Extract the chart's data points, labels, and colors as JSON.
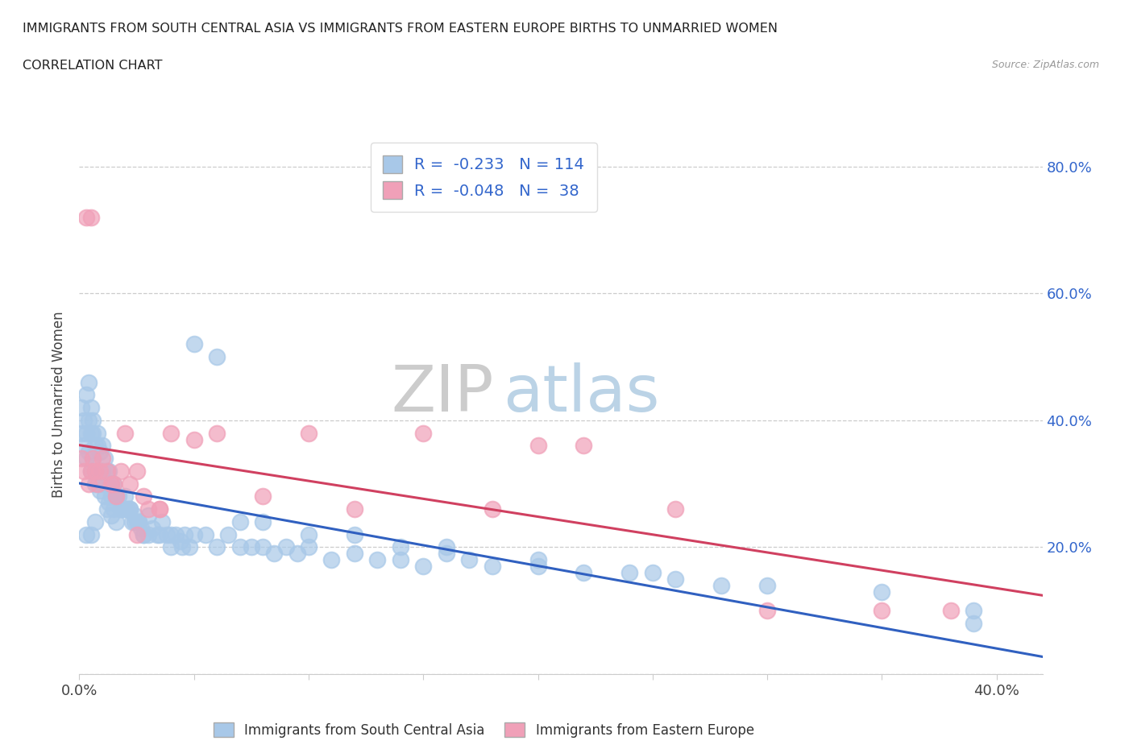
{
  "title_line1": "IMMIGRANTS FROM SOUTH CENTRAL ASIA VS IMMIGRANTS FROM EASTERN EUROPE BIRTHS TO UNMARRIED WOMEN",
  "title_line2": "CORRELATION CHART",
  "source_text": "Source: ZipAtlas.com",
  "ylabel": "Births to Unmarried Women",
  "xlim": [
    0.0,
    0.42
  ],
  "ylim": [
    0.0,
    0.85
  ],
  "color_blue": "#a8c8e8",
  "color_pink": "#f0a0b8",
  "line_color_blue": "#3060c0",
  "line_color_pink": "#d04060",
  "R_blue": -0.233,
  "N_blue": 114,
  "R_pink": -0.048,
  "N_pink": 38,
  "legend_label_blue": "Immigrants from South Central Asia",
  "legend_label_pink": "Immigrants from Eastern Europe",
  "watermark_zip": "ZIP",
  "watermark_atlas": "atlas",
  "blue_scatter_x": [
    0.001,
    0.001,
    0.002,
    0.002,
    0.003,
    0.003,
    0.003,
    0.004,
    0.004,
    0.005,
    0.005,
    0.005,
    0.006,
    0.006,
    0.007,
    0.007,
    0.008,
    0.008,
    0.009,
    0.009,
    0.01,
    0.01,
    0.011,
    0.011,
    0.012,
    0.012,
    0.013,
    0.013,
    0.014,
    0.014,
    0.015,
    0.015,
    0.016,
    0.016,
    0.017,
    0.018,
    0.019,
    0.02,
    0.021,
    0.022,
    0.023,
    0.024,
    0.025,
    0.026,
    0.027,
    0.028,
    0.03,
    0.032,
    0.034,
    0.036,
    0.038,
    0.04,
    0.042,
    0.044,
    0.046,
    0.048,
    0.05,
    0.055,
    0.06,
    0.065,
    0.07,
    0.075,
    0.08,
    0.085,
    0.09,
    0.095,
    0.1,
    0.11,
    0.12,
    0.13,
    0.14,
    0.15,
    0.16,
    0.17,
    0.18,
    0.2,
    0.22,
    0.24,
    0.26,
    0.28,
    0.004,
    0.006,
    0.008,
    0.01,
    0.012,
    0.014,
    0.016,
    0.018,
    0.02,
    0.022,
    0.024,
    0.026,
    0.028,
    0.03,
    0.035,
    0.04,
    0.045,
    0.05,
    0.06,
    0.07,
    0.08,
    0.1,
    0.12,
    0.14,
    0.16,
    0.2,
    0.25,
    0.3,
    0.35,
    0.39,
    0.003,
    0.005,
    0.007,
    0.39
  ],
  "blue_scatter_y": [
    0.42,
    0.38,
    0.4,
    0.36,
    0.44,
    0.38,
    0.34,
    0.4,
    0.35,
    0.42,
    0.38,
    0.32,
    0.38,
    0.34,
    0.36,
    0.3,
    0.38,
    0.32,
    0.35,
    0.29,
    0.36,
    0.3,
    0.34,
    0.28,
    0.32,
    0.26,
    0.32,
    0.27,
    0.3,
    0.25,
    0.3,
    0.26,
    0.28,
    0.24,
    0.28,
    0.26,
    0.26,
    0.28,
    0.26,
    0.26,
    0.24,
    0.25,
    0.24,
    0.24,
    0.23,
    0.22,
    0.25,
    0.23,
    0.22,
    0.24,
    0.22,
    0.2,
    0.22,
    0.21,
    0.22,
    0.2,
    0.22,
    0.22,
    0.2,
    0.22,
    0.2,
    0.2,
    0.2,
    0.19,
    0.2,
    0.19,
    0.2,
    0.18,
    0.19,
    0.18,
    0.18,
    0.17,
    0.19,
    0.18,
    0.17,
    0.17,
    0.16,
    0.16,
    0.15,
    0.14,
    0.46,
    0.4,
    0.36,
    0.32,
    0.3,
    0.28,
    0.28,
    0.26,
    0.26,
    0.26,
    0.24,
    0.24,
    0.22,
    0.22,
    0.22,
    0.22,
    0.2,
    0.52,
    0.5,
    0.24,
    0.24,
    0.22,
    0.22,
    0.2,
    0.2,
    0.18,
    0.16,
    0.14,
    0.13,
    0.1,
    0.22,
    0.22,
    0.24,
    0.08
  ],
  "pink_scatter_x": [
    0.001,
    0.002,
    0.003,
    0.004,
    0.005,
    0.006,
    0.007,
    0.008,
    0.009,
    0.01,
    0.012,
    0.014,
    0.016,
    0.018,
    0.02,
    0.022,
    0.025,
    0.028,
    0.03,
    0.035,
    0.04,
    0.05,
    0.06,
    0.08,
    0.1,
    0.12,
    0.15,
    0.18,
    0.22,
    0.26,
    0.3,
    0.35,
    0.38,
    0.005,
    0.015,
    0.025,
    0.035,
    0.2
  ],
  "pink_scatter_y": [
    0.34,
    0.32,
    0.72,
    0.3,
    0.32,
    0.34,
    0.32,
    0.3,
    0.32,
    0.34,
    0.32,
    0.3,
    0.28,
    0.32,
    0.38,
    0.3,
    0.32,
    0.28,
    0.26,
    0.26,
    0.38,
    0.37,
    0.38,
    0.28,
    0.38,
    0.26,
    0.38,
    0.26,
    0.36,
    0.26,
    0.1,
    0.1,
    0.1,
    0.72,
    0.3,
    0.22,
    0.26,
    0.36
  ]
}
